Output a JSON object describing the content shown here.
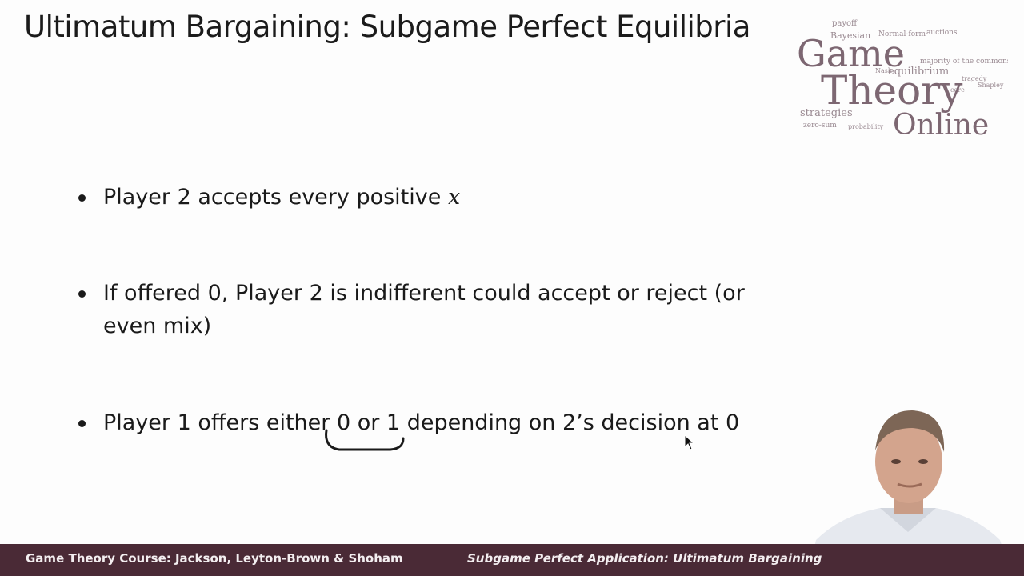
{
  "slide": {
    "title": "Ultimatum Bargaining: Subgame Perfect Equilibria",
    "bullets": [
      {
        "text": "Player 2 accepts every positive ",
        "math": "x"
      },
      {
        "text": "If offered 0, Player 2 is indifferent could accept or reject (or even mix)",
        "math": ""
      },
      {
        "text_before": "Player 1 offers either ",
        "text_highlight": "0 or 1",
        "text_after": " depending on 2’s decision at 0"
      }
    ]
  },
  "logo": {
    "line1": "Game",
    "line2": "Theory",
    "line3": "Online",
    "cloud_words": [
      "payoff",
      "Bayesian",
      "Normal-form",
      "auctions",
      "majority of the commons",
      "equilibrium",
      "Nash",
      "Shapley",
      "tragedy",
      "core",
      "strategies",
      "zero-sum",
      "probability"
    ]
  },
  "footer": {
    "left": "Game Theory Course: Jackson, Leyton-Brown & Shoham",
    "right": "Subgame Perfect Application: Ultimatum Bargaining"
  },
  "colors": {
    "footer_bg": "#4a2a36",
    "logo_text": "#7d6772"
  }
}
